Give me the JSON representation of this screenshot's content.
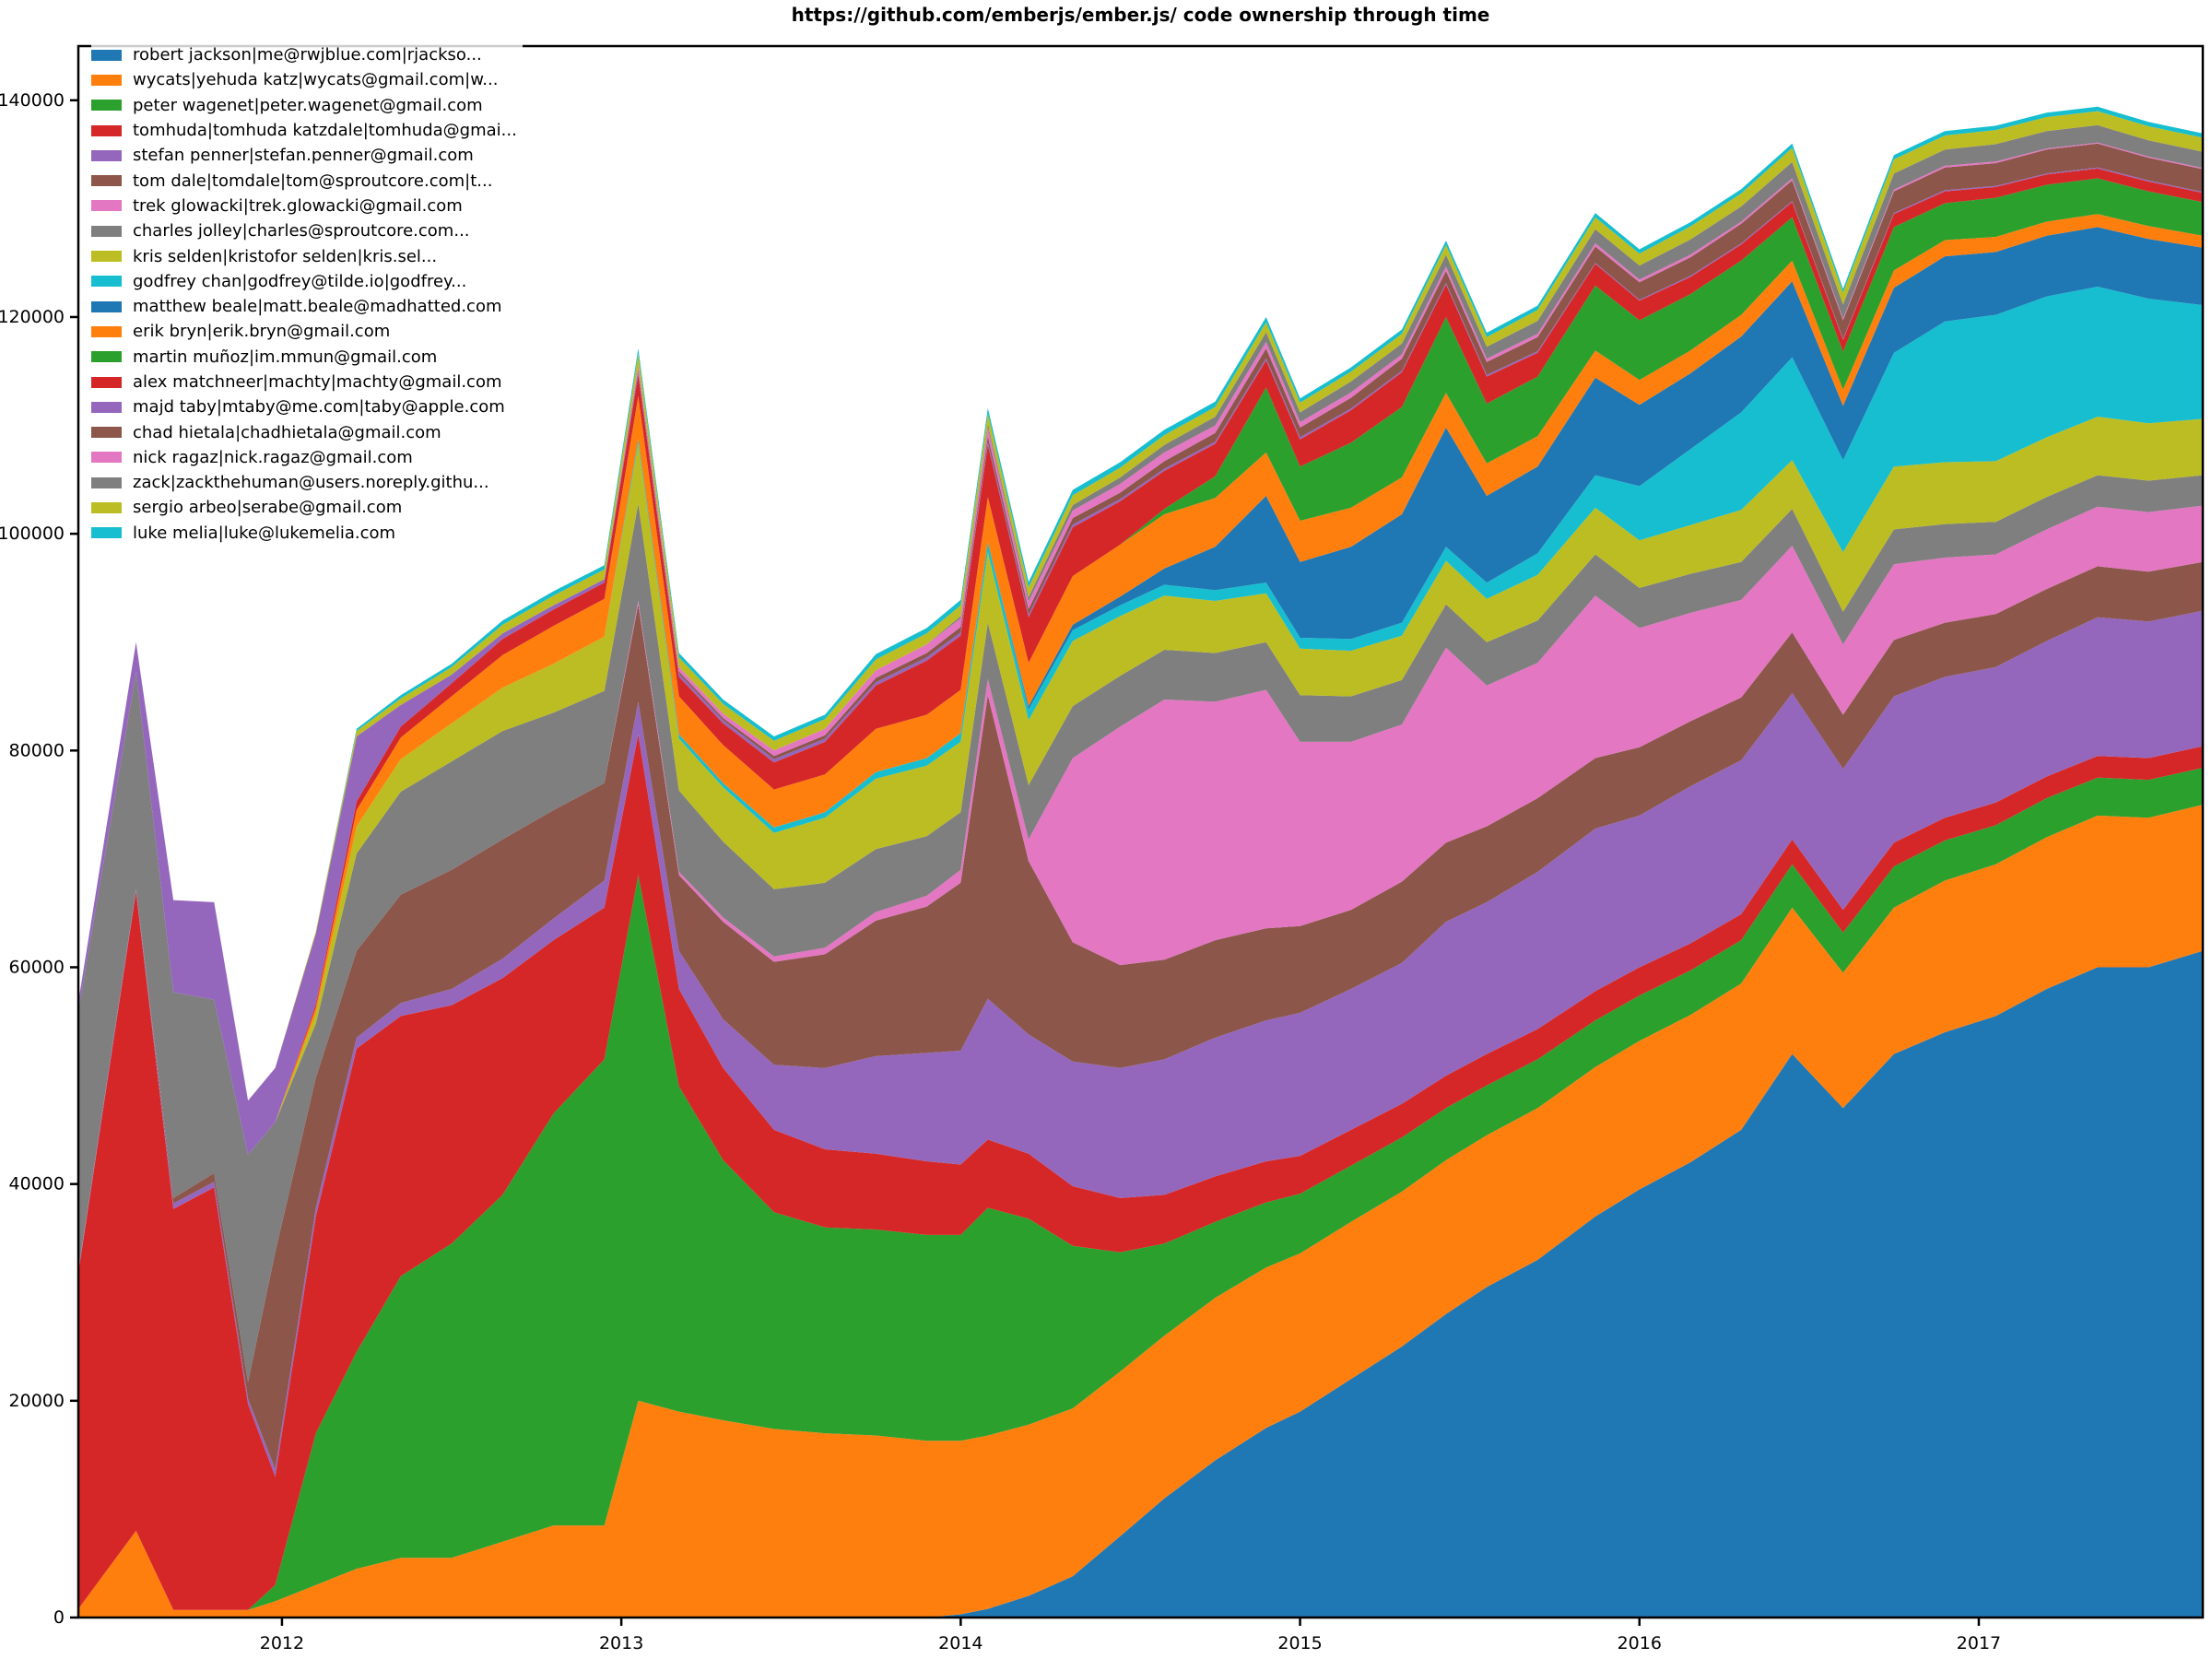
{
  "figure": {
    "title": "https://github.com/emberjs/ember.js/ code ownership through time"
  },
  "chart_data": {
    "type": "area",
    "stacked": true,
    "title": "https://github.com/emberjs/ember.js/ code ownership through time",
    "xlabel": "",
    "ylabel": "",
    "grid": false,
    "legend_position": "upper left",
    "xlim": [
      2011.4,
      2017.66
    ],
    "ylim": [
      0,
      145000
    ],
    "x_ticks": [
      2012,
      2013,
      2014,
      2015,
      2016,
      2017
    ],
    "y_ticks": [
      0,
      20000,
      40000,
      60000,
      80000,
      100000,
      120000,
      140000
    ],
    "x": [
      2011.4,
      2011.57,
      2011.68,
      2011.8,
      2011.9,
      2011.98,
      2012.1,
      2012.22,
      2012.35,
      2012.5,
      2012.65,
      2012.8,
      2012.95,
      2013.05,
      2013.17,
      2013.3,
      2013.45,
      2013.6,
      2013.75,
      2013.9,
      2014.0,
      2014.08,
      2014.2,
      2014.33,
      2014.47,
      2014.6,
      2014.75,
      2014.9,
      2015.0,
      2015.15,
      2015.3,
      2015.43,
      2015.55,
      2015.7,
      2015.87,
      2016.0,
      2016.15,
      2016.3,
      2016.45,
      2016.6,
      2016.75,
      2016.9,
      2017.05,
      2017.2,
      2017.35,
      2017.5,
      2017.66
    ],
    "series": [
      {
        "name": "robert jackson|me@rwjblue.com|rjackso...",
        "color": "#1f77b4",
        "values": [
          0,
          0,
          0,
          0,
          0,
          0,
          0,
          0,
          0,
          0,
          0,
          0,
          0,
          0,
          0,
          0,
          0,
          0,
          0,
          0,
          300,
          800,
          2000,
          3800,
          7500,
          11000,
          14500,
          17500,
          19000,
          22000,
          25000,
          28000,
          30500,
          33000,
          37000,
          39500,
          42000,
          45000,
          52000,
          47000,
          52000,
          54000,
          55500,
          58000,
          60000,
          60000,
          61500
        ]
      },
      {
        "name": "wycats|yehuda katz|wycats@gmail.com|w...",
        "color": "#ff7f0e",
        "values": [
          800,
          8000,
          700,
          700,
          700,
          1500,
          3000,
          4500,
          5500,
          5500,
          7000,
          8500,
          8500,
          20000,
          19000,
          18200,
          17400,
          17000,
          16800,
          16300,
          16000,
          16000,
          15800,
          15500,
          15200,
          15000,
          15000,
          14800,
          14600,
          14500,
          14300,
          14200,
          14000,
          14000,
          13800,
          13700,
          13600,
          13500,
          13500,
          12500,
          13500,
          14000,
          14000,
          14000,
          14000,
          13800,
          13500
        ]
      },
      {
        "name": "peter wagenet|peter.wagenet@gmail.com",
        "color": "#2ca02c",
        "values": [
          0,
          0,
          0,
          0,
          0,
          1500,
          14000,
          20000,
          26000,
          29000,
          32000,
          38000,
          43000,
          48500,
          30000,
          24000,
          20000,
          19000,
          19000,
          19000,
          19000,
          21000,
          19000,
          15000,
          11000,
          8500,
          7000,
          6000,
          5500,
          5200,
          5000,
          4800,
          4600,
          4500,
          4300,
          4200,
          4100,
          4000,
          4000,
          3700,
          3800,
          3700,
          3600,
          3600,
          3500,
          3500,
          3400
        ]
      },
      {
        "name": "tomhuda|tomhuda katzdale|tomhuda@gmai...",
        "color": "#d62728",
        "values": [
          31000,
          59000,
          37000,
          39000,
          19000,
          10000,
          20000,
          28000,
          24000,
          22000,
          20000,
          16000,
          14000,
          13000,
          9000,
          8500,
          7600,
          7200,
          7000,
          6800,
          6500,
          6300,
          6000,
          5500,
          5000,
          4500,
          4200,
          3800,
          3500,
          3300,
          3100,
          3000,
          2900,
          2800,
          2700,
          2600,
          2500,
          2400,
          2300,
          2100,
          2200,
          2100,
          2100,
          2000,
          2000,
          2000,
          2000
        ]
      },
      {
        "name": "stefan penner|stefan.penner@gmail.com",
        "color": "#9467bd",
        "values": [
          200,
          200,
          500,
          500,
          500,
          700,
          800,
          1000,
          1200,
          1500,
          1800,
          2000,
          2500,
          3000,
          3500,
          4500,
          6000,
          7500,
          9000,
          10000,
          10500,
          13000,
          11000,
          11500,
          12000,
          12500,
          12800,
          13000,
          13200,
          13000,
          13000,
          14200,
          14000,
          14500,
          15000,
          14000,
          14500,
          14200,
          13500,
          13000,
          13500,
          13000,
          12500,
          12500,
          12800,
          12600,
          12500
        ]
      },
      {
        "name": "tom dale|tomdale|tom@sproutcore.com|t...",
        "color": "#8c564b",
        "values": [
          0,
          0,
          500,
          800,
          1500,
          20000,
          12000,
          8000,
          10000,
          11000,
          11000,
          10000,
          9000,
          9000,
          7000,
          9000,
          9500,
          10500,
          12500,
          13500,
          15500,
          28000,
          16000,
          11000,
          9500,
          9200,
          9000,
          8500,
          8000,
          7300,
          7500,
          7300,
          7000,
          6800,
          6500,
          6300,
          6000,
          5800,
          5600,
          5000,
          5200,
          5000,
          4900,
          4800,
          4700,
          4600,
          4500
        ]
      },
      {
        "name": "trek glowacki|trek.glowacki@gmail.com",
        "color": "#e377c2",
        "values": [
          0,
          0,
          0,
          0,
          0,
          0,
          0,
          0,
          0,
          0,
          0,
          0,
          0,
          300,
          300,
          400,
          500,
          600,
          800,
          1000,
          1200,
          1500,
          2000,
          17000,
          22000,
          24000,
          22000,
          22000,
          17000,
          15500,
          14500,
          18000,
          13000,
          12500,
          15000,
          11000,
          10000,
          9000,
          8000,
          6500,
          7000,
          6000,
          5500,
          5500,
          5500,
          5500,
          5200
        ]
      },
      {
        "name": "charles jolley|charles@sproutcore.com...",
        "color": "#7f7f7f",
        "values": [
          24000,
          20000,
          19000,
          16000,
          21000,
          12000,
          5000,
          9000,
          9500,
          10000,
          10000,
          9000,
          8500,
          9000,
          7500,
          7000,
          6200,
          6000,
          5800,
          5500,
          5300,
          5200,
          5000,
          4800,
          4700,
          4600,
          4500,
          4400,
          4300,
          4200,
          4100,
          4000,
          4000,
          3900,
          3800,
          3700,
          3600,
          3500,
          3400,
          3000,
          3200,
          3100,
          3000,
          3000,
          2900,
          2900,
          2800
        ]
      },
      {
        "name": "kris selden|kristofor selden|kris.sel...",
        "color": "#bcbd22",
        "values": [
          0,
          0,
          0,
          0,
          0,
          0,
          1000,
          2500,
          3000,
          3500,
          4000,
          4500,
          5000,
          5500,
          4800,
          5000,
          5200,
          6000,
          6500,
          6500,
          6500,
          6500,
          6000,
          6000,
          5500,
          5000,
          4800,
          4500,
          4300,
          4200,
          4100,
          4000,
          4000,
          4200,
          4300,
          4400,
          4500,
          4800,
          4500,
          5500,
          5800,
          5700,
          5600,
          5500,
          5400,
          5300,
          5200
        ]
      },
      {
        "name": "godfrey chan|godfrey@tilde.io|godfrey...",
        "color": "#17becf",
        "values": [
          0,
          0,
          0,
          0,
          0,
          0,
          0,
          0,
          0,
          0,
          0,
          0,
          0,
          400,
          400,
          400,
          500,
          500,
          600,
          700,
          800,
          900,
          1000,
          1000,
          1000,
          1000,
          1000,
          1000,
          1000,
          1100,
          1200,
          1300,
          1500,
          2000,
          3000,
          5000,
          7000,
          9000,
          9500,
          8500,
          10500,
          13000,
          13500,
          13000,
          12000,
          11500,
          10500
        ]
      },
      {
        "name": "matthew beale|matt.beale@madhatted.com",
        "color": "#1f77b4",
        "values": [
          0,
          0,
          0,
          0,
          0,
          0,
          0,
          0,
          0,
          0,
          0,
          0,
          0,
          0,
          0,
          0,
          0,
          0,
          0,
          0,
          0,
          0,
          300,
          500,
          800,
          1500,
          4000,
          8000,
          7000,
          8500,
          10000,
          11000,
          8000,
          8000,
          9000,
          7500,
          7000,
          7000,
          7000,
          5000,
          6000,
          6000,
          5800,
          5600,
          5500,
          5500,
          5300
        ]
      },
      {
        "name": "erik bryn|erik.bryn@gmail.com",
        "color": "#ff7f0e",
        "values": [
          0,
          0,
          0,
          0,
          0,
          0,
          500,
          1500,
          2000,
          2500,
          3000,
          3500,
          3500,
          4000,
          3500,
          3500,
          3500,
          3500,
          4000,
          4000,
          4000,
          4200,
          4000,
          4500,
          4800,
          5000,
          4500,
          4000,
          3800,
          3600,
          3400,
          3200,
          3000,
          2800,
          2500,
          2300,
          2100,
          2000,
          1900,
          1500,
          1600,
          1500,
          1400,
          1300,
          1200,
          1200,
          1100
        ]
      },
      {
        "name": "martin muñoz|im.mmun@gmail.com",
        "color": "#2ca02c",
        "values": [
          0,
          0,
          0,
          0,
          0,
          0,
          0,
          0,
          0,
          0,
          0,
          0,
          0,
          0,
          0,
          0,
          0,
          0,
          0,
          0,
          0,
          0,
          0,
          0,
          0,
          500,
          2000,
          6000,
          5000,
          6000,
          6500,
          7000,
          5500,
          5500,
          6000,
          5500,
          5200,
          5000,
          4000,
          3500,
          4000,
          3400,
          3600,
          3400,
          3300,
          3200,
          3100
        ]
      },
      {
        "name": "alex matchneer|machty|machty@gmail.com",
        "color": "#d62728",
        "values": [
          0,
          0,
          0,
          0,
          0,
          0,
          300,
          800,
          1000,
          1200,
          1500,
          1500,
          1500,
          2000,
          1800,
          2000,
          2500,
          3000,
          4000,
          5000,
          5000,
          4800,
          4200,
          4500,
          4000,
          3500,
          3000,
          2500,
          2500,
          3000,
          3200,
          3000,
          2500,
          2200,
          2000,
          1800,
          1600,
          1500,
          1400,
          1100,
          1200,
          1100,
          1000,
          950,
          900,
          900,
          850
        ]
      },
      {
        "name": "majd taby|mtaby@me.com|taby@apple.com",
        "color": "#9467bd",
        "values": [
          800,
          2800,
          8500,
          9000,
          5000,
          5000,
          6500,
          6000,
          2000,
          800,
          500,
          400,
          300,
          300,
          300,
          300,
          300,
          300,
          300,
          300,
          300,
          300,
          250,
          250,
          200,
          200,
          200,
          200,
          200,
          150,
          150,
          150,
          150,
          150,
          100,
          100,
          100,
          100,
          100,
          100,
          100,
          100,
          100,
          100,
          100,
          100,
          100
        ]
      },
      {
        "name": "chad hietala|chadhietala@gmail.com",
        "color": "#8c564b",
        "values": [
          0,
          0,
          0,
          0,
          0,
          0,
          0,
          0,
          0,
          0,
          0,
          0,
          0,
          200,
          200,
          200,
          300,
          300,
          400,
          400,
          500,
          500,
          500,
          600,
          600,
          700,
          800,
          900,
          900,
          1000,
          1100,
          1100,
          1200,
          1300,
          1500,
          1600,
          1700,
          1800,
          1900,
          1700,
          2000,
          2100,
          2100,
          2200,
          2200,
          2100,
          2100
        ]
      },
      {
        "name": "nick ragaz|nick.ragaz@gmail.com",
        "color": "#e377c2",
        "values": [
          0,
          0,
          0,
          0,
          0,
          0,
          0,
          0,
          0,
          0,
          0,
          0,
          0,
          400,
          400,
          400,
          500,
          600,
          700,
          800,
          800,
          800,
          700,
          700,
          800,
          800,
          700,
          600,
          500,
          500,
          400,
          400,
          300,
          300,
          300,
          250,
          250,
          200,
          200,
          150,
          150,
          150,
          150,
          100,
          100,
          100,
          100
        ]
      },
      {
        "name": "zack|zackthehuman@users.noreply.githu...",
        "color": "#7f7f7f",
        "values": [
          0,
          0,
          0,
          0,
          0,
          0,
          0,
          0,
          0,
          0,
          0,
          0,
          0,
          0,
          0,
          0,
          0,
          0,
          0,
          0,
          200,
          300,
          400,
          500,
          600,
          700,
          800,
          900,
          900,
          1000,
          1000,
          1100,
          1100,
          1200,
          1300,
          1300,
          1400,
          1400,
          1500,
          1300,
          1500,
          1500,
          1600,
          1600,
          1600,
          1500,
          1500
        ]
      },
      {
        "name": "sergio arbeo|serabe@gmail.com",
        "color": "#bcbd22",
        "values": [
          0,
          0,
          0,
          0,
          0,
          0,
          200,
          500,
          600,
          700,
          800,
          900,
          900,
          1000,
          900,
          900,
          900,
          900,
          1000,
          1000,
          1000,
          1000,
          900,
          900,
          900,
          900,
          900,
          900,
          900,
          900,
          900,
          900,
          900,
          1000,
          1100,
          1100,
          1200,
          1200,
          1300,
          1100,
          1300,
          1300,
          1300,
          1300,
          1300,
          1300,
          1300
        ]
      },
      {
        "name": "luke melia|luke@lukemelia.com",
        "color": "#17becf",
        "values": [
          0,
          0,
          0,
          0,
          0,
          0,
          0,
          200,
          300,
          300,
          400,
          400,
          400,
          500,
          400,
          400,
          400,
          400,
          500,
          500,
          500,
          500,
          500,
          500,
          500,
          500,
          500,
          500,
          400,
          400,
          400,
          400,
          400,
          400,
          400,
          400,
          400,
          400,
          400,
          350,
          400,
          400,
          400,
          400,
          400,
          400,
          400
        ]
      }
    ]
  }
}
